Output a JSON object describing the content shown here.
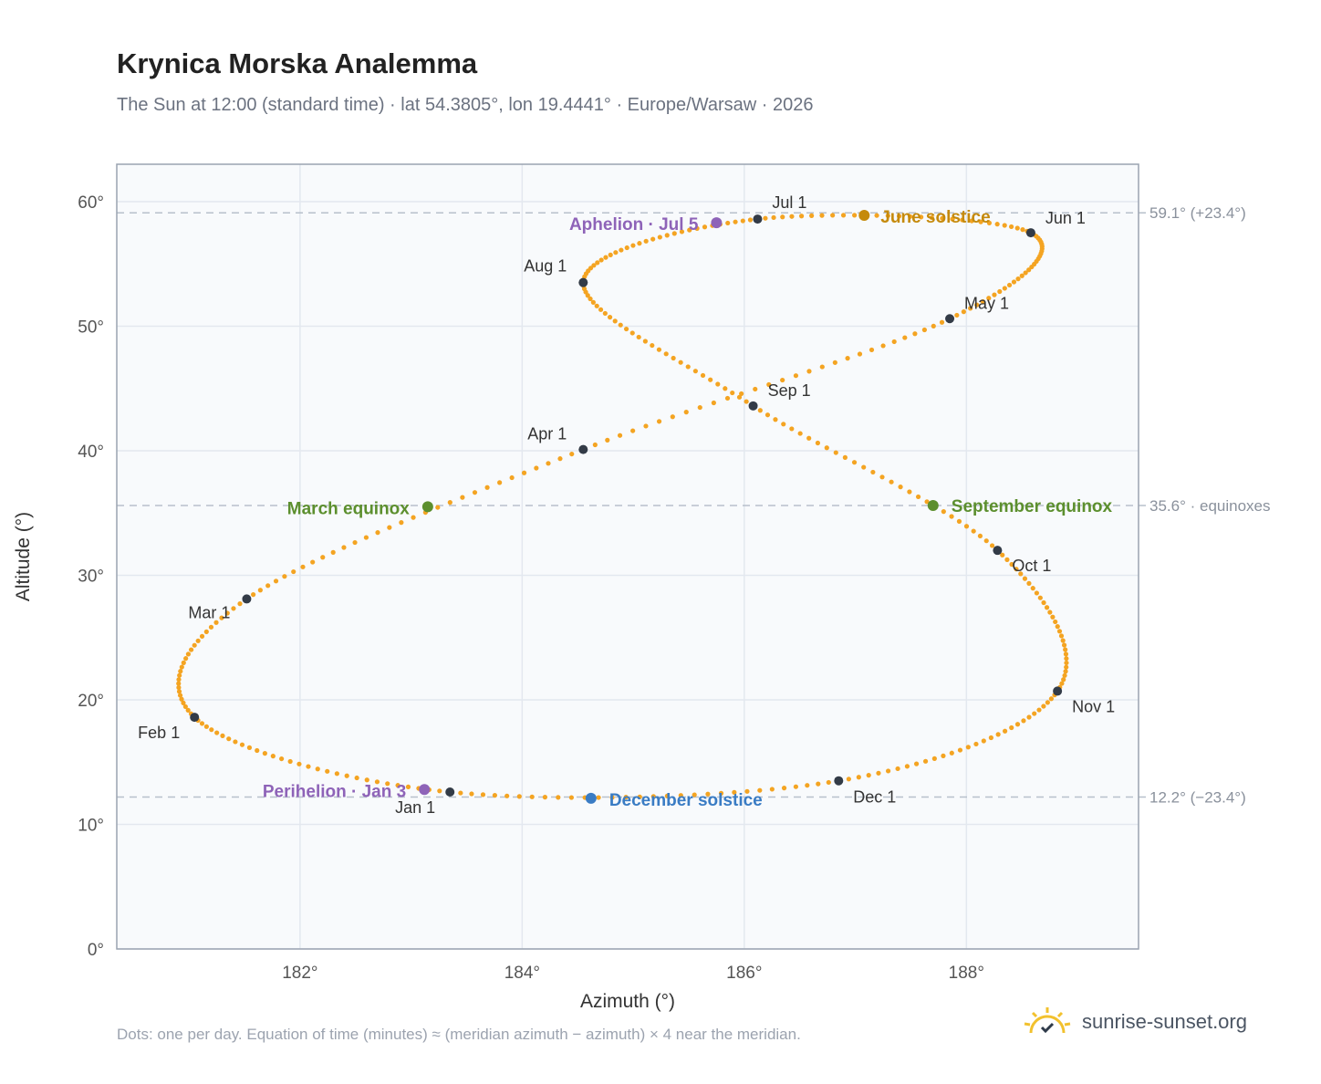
{
  "title": "Krynica Morska Analemma",
  "subtitle": "The Sun at 12:00 (standard time) · lat 54.3805°, lon 19.4441° · Europe/Warsaw · 2026",
  "footnote": "Dots: one per day. Equation of time (minutes) ≈ (meridian azimuth − azimuth) × 4 near the meridian.",
  "brand": {
    "name": "sunrise-sunset.org",
    "icon": "sun-check-icon",
    "color": "#f2c12e"
  },
  "colors": {
    "path": "#f4a422",
    "month": "#333b47",
    "june": "#c58a0c",
    "december": "#3a7cc4",
    "equinox": "#5c8f2e",
    "apsis": "#8e63b8"
  },
  "chart_data": {
    "type": "scatter",
    "xlabel": "Azimuth (°)",
    "ylabel": "Altitude (°)",
    "xlim": [
      180.35,
      189.55
    ],
    "ylim": [
      0,
      63
    ],
    "xticks": [
      182,
      184,
      186,
      188
    ],
    "xtick_labels": [
      "182°",
      "184°",
      "186°",
      "188°"
    ],
    "yticks": [
      0,
      10,
      20,
      30,
      40,
      50,
      60
    ],
    "ytick_labels": [
      "0°",
      "10°",
      "20°",
      "30°",
      "40°",
      "50°",
      "60°"
    ],
    "grid": true,
    "reference_lines": [
      {
        "y": 59.1,
        "label": "59.1° (+23.4°)"
      },
      {
        "y": 35.6,
        "label": "35.6° · equinoxes"
      },
      {
        "y": 12.2,
        "label": "12.2° (−23.4°)"
      }
    ],
    "months": [
      {
        "label": "Jan 1",
        "az": 183.35,
        "alt": 12.6
      },
      {
        "label": "Feb 1",
        "az": 181.05,
        "alt": 18.6
      },
      {
        "label": "Mar 1",
        "az": 181.52,
        "alt": 28.1
      },
      {
        "label": "Apr 1",
        "az": 184.55,
        "alt": 40.1
      },
      {
        "label": "May 1",
        "az": 187.85,
        "alt": 50.6
      },
      {
        "label": "Jun 1",
        "az": 188.58,
        "alt": 57.5
      },
      {
        "label": "Jul 1",
        "az": 186.12,
        "alt": 58.6
      },
      {
        "label": "Aug 1",
        "az": 184.55,
        "alt": 53.5
      },
      {
        "label": "Sep 1",
        "az": 186.08,
        "alt": 43.6
      },
      {
        "label": "Oct 1",
        "az": 188.28,
        "alt": 32.0
      },
      {
        "label": "Nov 1",
        "az": 188.82,
        "alt": 20.7
      },
      {
        "label": "Dec 1",
        "az": 186.85,
        "alt": 13.5
      }
    ],
    "events": [
      {
        "label": "June solstice",
        "az": 187.08,
        "alt": 58.9,
        "color": "#c58a0c"
      },
      {
        "label": "December solstice",
        "az": 184.62,
        "alt": 12.1,
        "color": "#3a7cc4"
      },
      {
        "label": "March equinox",
        "az": 183.15,
        "alt": 35.5,
        "color": "#5c8f2e"
      },
      {
        "label": "September equinox",
        "az": 187.7,
        "alt": 35.6,
        "color": "#5c8f2e"
      },
      {
        "label": "Aphelion · Jul 5",
        "az": 185.75,
        "alt": 58.3,
        "color": "#8e63b8"
      },
      {
        "label": "Perihelion · Jan 3",
        "az": 183.12,
        "alt": 12.8,
        "color": "#8e63b8"
      }
    ]
  }
}
